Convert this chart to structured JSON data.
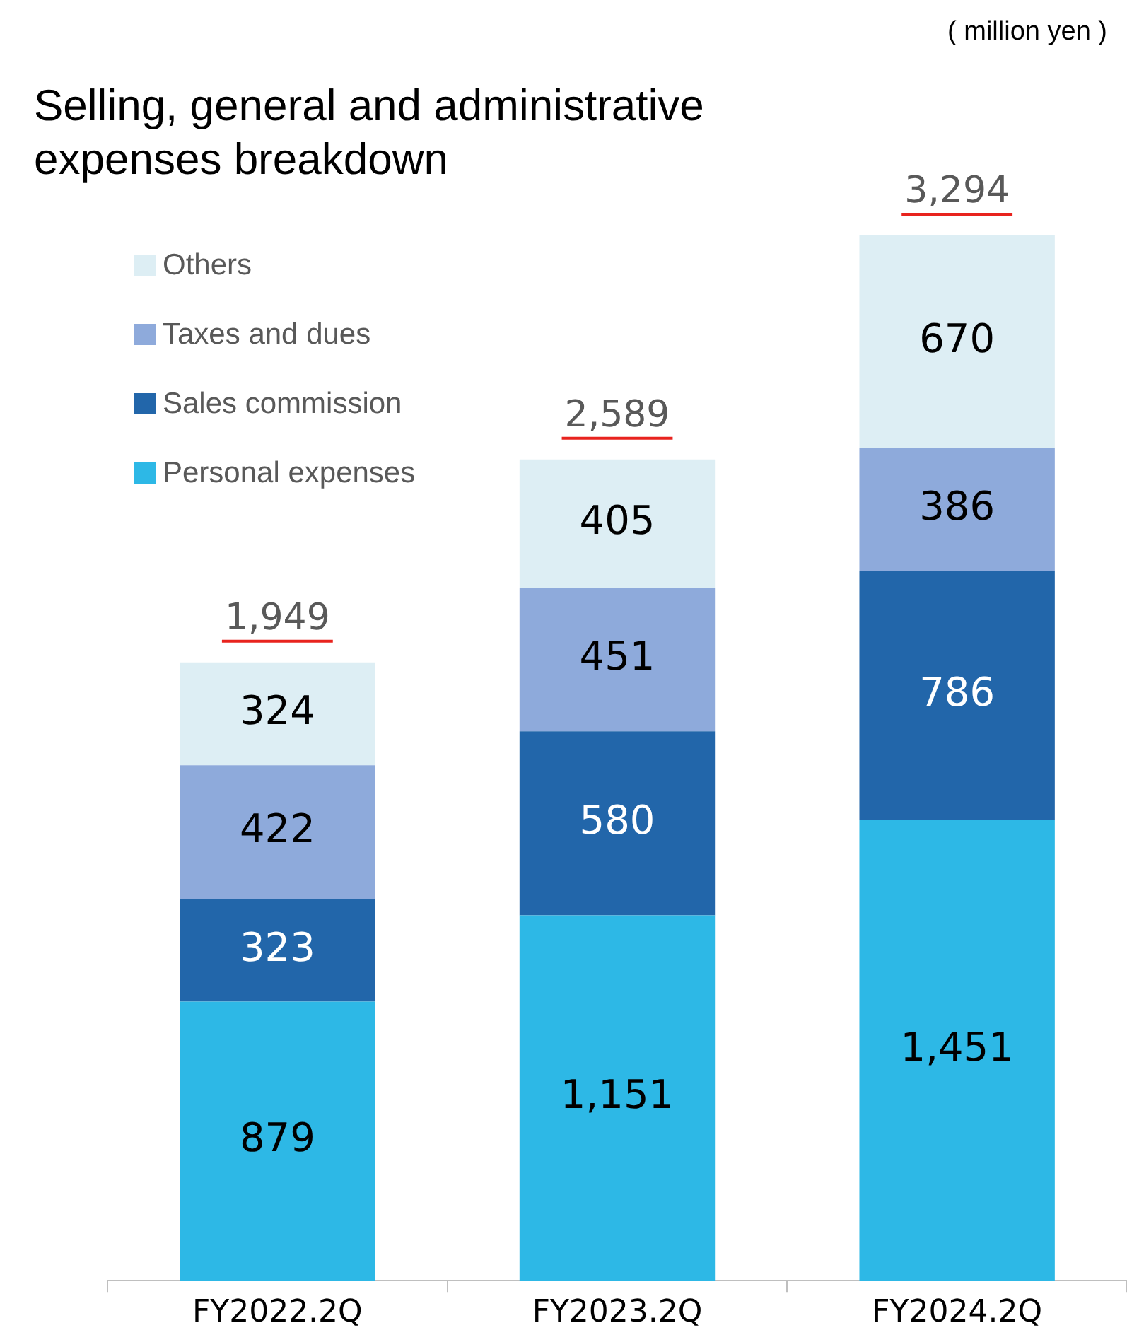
{
  "chart_data": {
    "type": "bar",
    "title": "Selling, general and administrative expenses breakdown",
    "annotations": [
      "( million yen )"
    ],
    "categories": [
      "FY2022.2Q",
      "FY2023.2Q",
      "FY2024.2Q"
    ],
    "stacked": true,
    "legend": "top left",
    "grid": false,
    "series": [
      {
        "name": "Personal expenses",
        "color": "#2db8e6",
        "values": [
          879,
          1151,
          1451
        ],
        "value_labels": [
          "879",
          "1,151",
          "1,451"
        ]
      },
      {
        "name": "Sales commission",
        "color": "#2266aa",
        "values": [
          323,
          580,
          786
        ],
        "value_labels": [
          "323",
          "580",
          "786"
        ]
      },
      {
        "name": "Taxes and dues",
        "color": "#8eaadb",
        "values": [
          422,
          451,
          386
        ],
        "value_labels": [
          "422",
          "451",
          "386"
        ]
      },
      {
        "name": "Others",
        "color": "#ddeef4",
        "values": [
          324,
          405,
          670
        ],
        "value_labels": [
          "324",
          "405",
          "670"
        ]
      }
    ],
    "totals": [
      "1,949",
      "2,589",
      "3,294"
    ]
  }
}
